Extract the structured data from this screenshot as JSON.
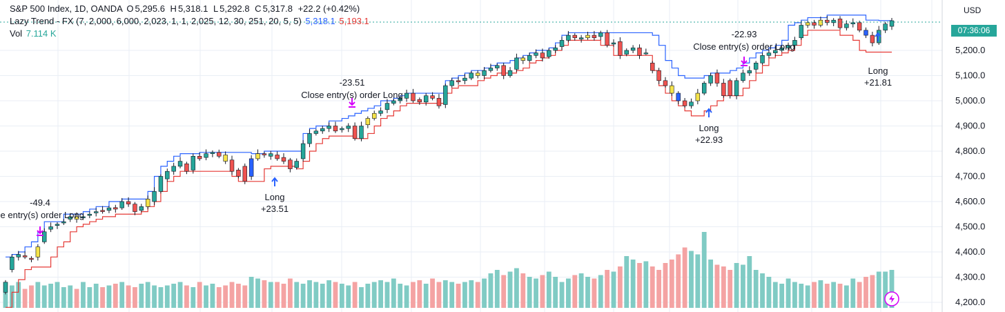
{
  "legend": {
    "symbol": "S&P 500 Index, 1D, OANDA",
    "o_label": "O",
    "o_value": "5,295.6",
    "h_label": "H",
    "h_value": "5,318.1",
    "l_label": "L",
    "l_value": "5,292.8",
    "c_label": "C",
    "c_value": "5,317.8",
    "change": "+22.2 (+0.42%)",
    "indicator": "Lazy Trend - FX (7, 2,000, 6,000, 2,023, 1, 1, 2,025, 12, 30, 251, 20, 5, 5)",
    "indicator_upper": "5,318.1",
    "indicator_lower": "5,193.1",
    "vol_label": "Vol",
    "vol_value": "7.114 K"
  },
  "currency": "USD",
  "countdown": "07:36:06",
  "colors": {
    "up": "#26a69a",
    "down": "#ef5350",
    "neutral": "#f5e34a",
    "signal": "#2962ff",
    "upper_line": "#2962ff",
    "lower_line": "#e53935",
    "vol_up": "#80cbc4",
    "vol_down": "#f4a3a3",
    "grid": "#e9eef5",
    "marker": "#d500f9",
    "long_arrow": "#2962ff"
  },
  "chart_data": {
    "type": "candlestick",
    "title": "S&P 500 Index, 1D, OANDA",
    "ylim": [
      4180,
      5560
    ],
    "y_ticks": [
      "5,200.0",
      "5,100.0",
      "5,000.0",
      "4,900.0",
      "4,800.0",
      "4,700.0",
      "4,600.0",
      "4,500.0",
      "4,400.0",
      "4,300.0",
      "4,200.0"
    ],
    "y_tick_values": [
      5200,
      5100,
      5000,
      4900,
      4800,
      4700,
      4600,
      4500,
      4400,
      4300,
      4200
    ],
    "closes": [
      4280,
      4380,
      4390,
      4380,
      4370,
      4420,
      4480,
      4500,
      4510,
      4520,
      4540,
      4530,
      4540,
      4550,
      4560,
      4560,
      4575,
      4570,
      4600,
      4590,
      4560,
      4580,
      4610,
      4640,
      4700,
      4720,
      4740,
      4760,
      4720,
      4780,
      4770,
      4790,
      4795,
      4780,
      4760,
      4720,
      4700,
      4680,
      4770,
      4790,
      4785,
      4790,
      4770,
      4760,
      4730,
      4760,
      4830,
      4870,
      4880,
      4890,
      4900,
      4880,
      4890,
      4900,
      4850,
      4900,
      4930,
      4950,
      4960,
      4990,
      5000,
      5010,
      5030,
      5000,
      4995,
      5020,
      5010,
      4980,
      5060,
      5080,
      5075,
      5090,
      5110,
      5100,
      5120,
      5130,
      5140,
      5100,
      5120,
      5170,
      5160,
      5180,
      5190,
      5170,
      5200,
      5210,
      5240,
      5260,
      5250,
      5250,
      5260,
      5250,
      5270,
      5220,
      5230,
      5180,
      5200,
      5210,
      5180,
      5190,
      5120,
      5080,
      5060,
      5030,
      5000,
      4980,
      4995,
      5030,
      5070,
      5100,
      5070,
      5020,
      5020,
      5080,
      5110,
      5120,
      5150,
      5180,
      5190,
      5200,
      5210,
      5220,
      5240,
      5300,
      5310,
      5300,
      5320,
      5310,
      5320,
      5290,
      5305,
      5310,
      5280,
      5260,
      5230,
      5280,
      5305,
      5317.8
    ],
    "opens": [
      4240,
      4330,
      4380,
      4385,
      4375,
      4380,
      4440,
      4490,
      4505,
      4515,
      4530,
      4540,
      4535,
      4545,
      4555,
      4565,
      4565,
      4576,
      4575,
      4600,
      4590,
      4565,
      4580,
      4600,
      4640,
      4690,
      4720,
      4740,
      4750,
      4725,
      4780,
      4775,
      4790,
      4795,
      4785,
      4765,
      4725,
      4740,
      4700,
      4770,
      4790,
      4780,
      4785,
      4775,
      4765,
      4735,
      4770,
      4830,
      4870,
      4880,
      4890,
      4900,
      4885,
      4890,
      4900,
      4850,
      4905,
      4930,
      4950,
      4965,
      4990,
      5000,
      5010,
      5030,
      5005,
      4995,
      5020,
      5010,
      4985,
      5060,
      5080,
      5080,
      5090,
      5110,
      5100,
      5120,
      5130,
      5140,
      5100,
      5125,
      5170,
      5160,
      5180,
      5190,
      5175,
      5200,
      5215,
      5240,
      5260,
      5245,
      5250,
      5260,
      5255,
      5270,
      5225,
      5235,
      5185,
      5200,
      5210,
      5190,
      5150,
      5120,
      5080,
      5060,
      5030,
      5000,
      4980,
      5000,
      5030,
      5070,
      5110,
      5070,
      5080,
      5020,
      5080,
      5110,
      5125,
      5150,
      5180,
      5190,
      5200,
      5210,
      5220,
      5250,
      5300,
      5310,
      5300,
      5320,
      5310,
      5325,
      5290,
      5305,
      5310,
      5280,
      5260,
      5230,
      5280,
      5295.6
    ],
    "upper_band": [
      4380,
      4390,
      4400,
      4420,
      4440,
      4480,
      4520,
      4520,
      4520,
      4550,
      4550,
      4550,
      4560,
      4570,
      4580,
      4580,
      4600,
      4600,
      4610,
      4610,
      4610,
      4610,
      4640,
      4700,
      4740,
      4760,
      4780,
      4790,
      4790,
      4790,
      4795,
      4795,
      4795,
      4795,
      4795,
      4795,
      4795,
      4795,
      4790,
      4790,
      4800,
      4800,
      4800,
      4800,
      4800,
      4800,
      4870,
      4890,
      4900,
      4900,
      4920,
      4920,
      4930,
      4940,
      4950,
      4960,
      4970,
      4980,
      5000,
      5000,
      5010,
      5020,
      5030,
      5030,
      5030,
      5030,
      5030,
      5030,
      5080,
      5090,
      5100,
      5110,
      5120,
      5120,
      5130,
      5140,
      5150,
      5150,
      5160,
      5170,
      5180,
      5190,
      5200,
      5200,
      5210,
      5230,
      5260,
      5270,
      5270,
      5270,
      5270,
      5270,
      5270,
      5270,
      5270,
      5270,
      5270,
      5270,
      5270,
      5270,
      5260,
      5220,
      5160,
      5130,
      5100,
      5090,
      5090,
      5090,
      5100,
      5110,
      5110,
      5110,
      5120,
      5130,
      5150,
      5170,
      5190,
      5200,
      5210,
      5220,
      5240,
      5300,
      5310,
      5320,
      5330,
      5330,
      5330,
      5340,
      5340,
      5340,
      5340,
      5340,
      5340,
      5320,
      5320,
      5318.1,
      5318.1,
      5318.1
    ],
    "lower_band": [
      4180,
      4240,
      4290,
      4330,
      4340,
      4340,
      4340,
      4380,
      4420,
      4440,
      4480,
      4500,
      4510,
      4520,
      4530,
      4540,
      4540,
      4550,
      4550,
      4550,
      4550,
      4560,
      4580,
      4600,
      4640,
      4680,
      4700,
      4720,
      4720,
      4720,
      4720,
      4720,
      4720,
      4720,
      4720,
      4700,
      4680,
      4680,
      4680,
      4680,
      4730,
      4740,
      4740,
      4740,
      4740,
      4730,
      4760,
      4800,
      4830,
      4850,
      4860,
      4860,
      4860,
      4860,
      4850,
      4850,
      4870,
      4900,
      4930,
      4940,
      4960,
      4980,
      4990,
      4990,
      4990,
      4990,
      4990,
      4990,
      5030,
      5050,
      5060,
      5060,
      5060,
      5080,
      5090,
      5100,
      5110,
      5110,
      5110,
      5120,
      5130,
      5150,
      5160,
      5170,
      5180,
      5200,
      5220,
      5240,
      5240,
      5240,
      5240,
      5240,
      5220,
      5220,
      5180,
      5180,
      5180,
      5180,
      5180,
      5180,
      5120,
      5060,
      5030,
      5000,
      4980,
      4960,
      4940,
      4940,
      4960,
      4980,
      5000,
      5020,
      5020,
      5020,
      5050,
      5080,
      5110,
      5140,
      5170,
      5180,
      5190,
      5200,
      5220,
      5260,
      5280,
      5280,
      5280,
      5280,
      5280,
      5260,
      5260,
      5240,
      5200,
      5193.1,
      5193.1,
      5193.1,
      5193.1,
      5193.1
    ],
    "volume": [
      30,
      26,
      30,
      22,
      26,
      30,
      26,
      28,
      30,
      24,
      26,
      22,
      30,
      24,
      28,
      24,
      26,
      28,
      30,
      26,
      24,
      28,
      30,
      26,
      24,
      26,
      28,
      30,
      26,
      24,
      30,
      26,
      28,
      24,
      26,
      30,
      28,
      26,
      36,
      34,
      32,
      30,
      30,
      28,
      34,
      30,
      28,
      32,
      30,
      28,
      32,
      30,
      28,
      26,
      30,
      24,
      28,
      30,
      32,
      30,
      34,
      28,
      26,
      30,
      32,
      28,
      34,
      30,
      32,
      30,
      28,
      30,
      32,
      30,
      34,
      40,
      44,
      38,
      42,
      46,
      40,
      36,
      34,
      38,
      42,
      36,
      30,
      34,
      38,
      40,
      36,
      34,
      38,
      44,
      42,
      48,
      60,
      56,
      52,
      54,
      48,
      44,
      52,
      56,
      62,
      70,
      66,
      62,
      88,
      56,
      50,
      48,
      44,
      52,
      50,
      60,
      44,
      40,
      36,
      30,
      28,
      34,
      30,
      28,
      26,
      30,
      32,
      28,
      30,
      28,
      26,
      34,
      30,
      36,
      38,
      42,
      42,
      44
    ],
    "annotations": [
      {
        "kind": "close",
        "text_top": "-49.4",
        "text_bottom": "se entry(s) order Long"
      },
      {
        "kind": "long",
        "text_top": "Long",
        "text_bottom": "+23.51"
      },
      {
        "kind": "close",
        "text_top": "-23.51",
        "text_bottom": "Close entry(s) order Long"
      },
      {
        "kind": "long",
        "text_top": "Long",
        "text_bottom": "+22.93"
      },
      {
        "kind": "close",
        "text_top": "-22.93",
        "text_bottom": "Close entry(s) order Long"
      },
      {
        "kind": "long",
        "text_top": "Long",
        "text_bottom": "+21.81"
      }
    ]
  }
}
